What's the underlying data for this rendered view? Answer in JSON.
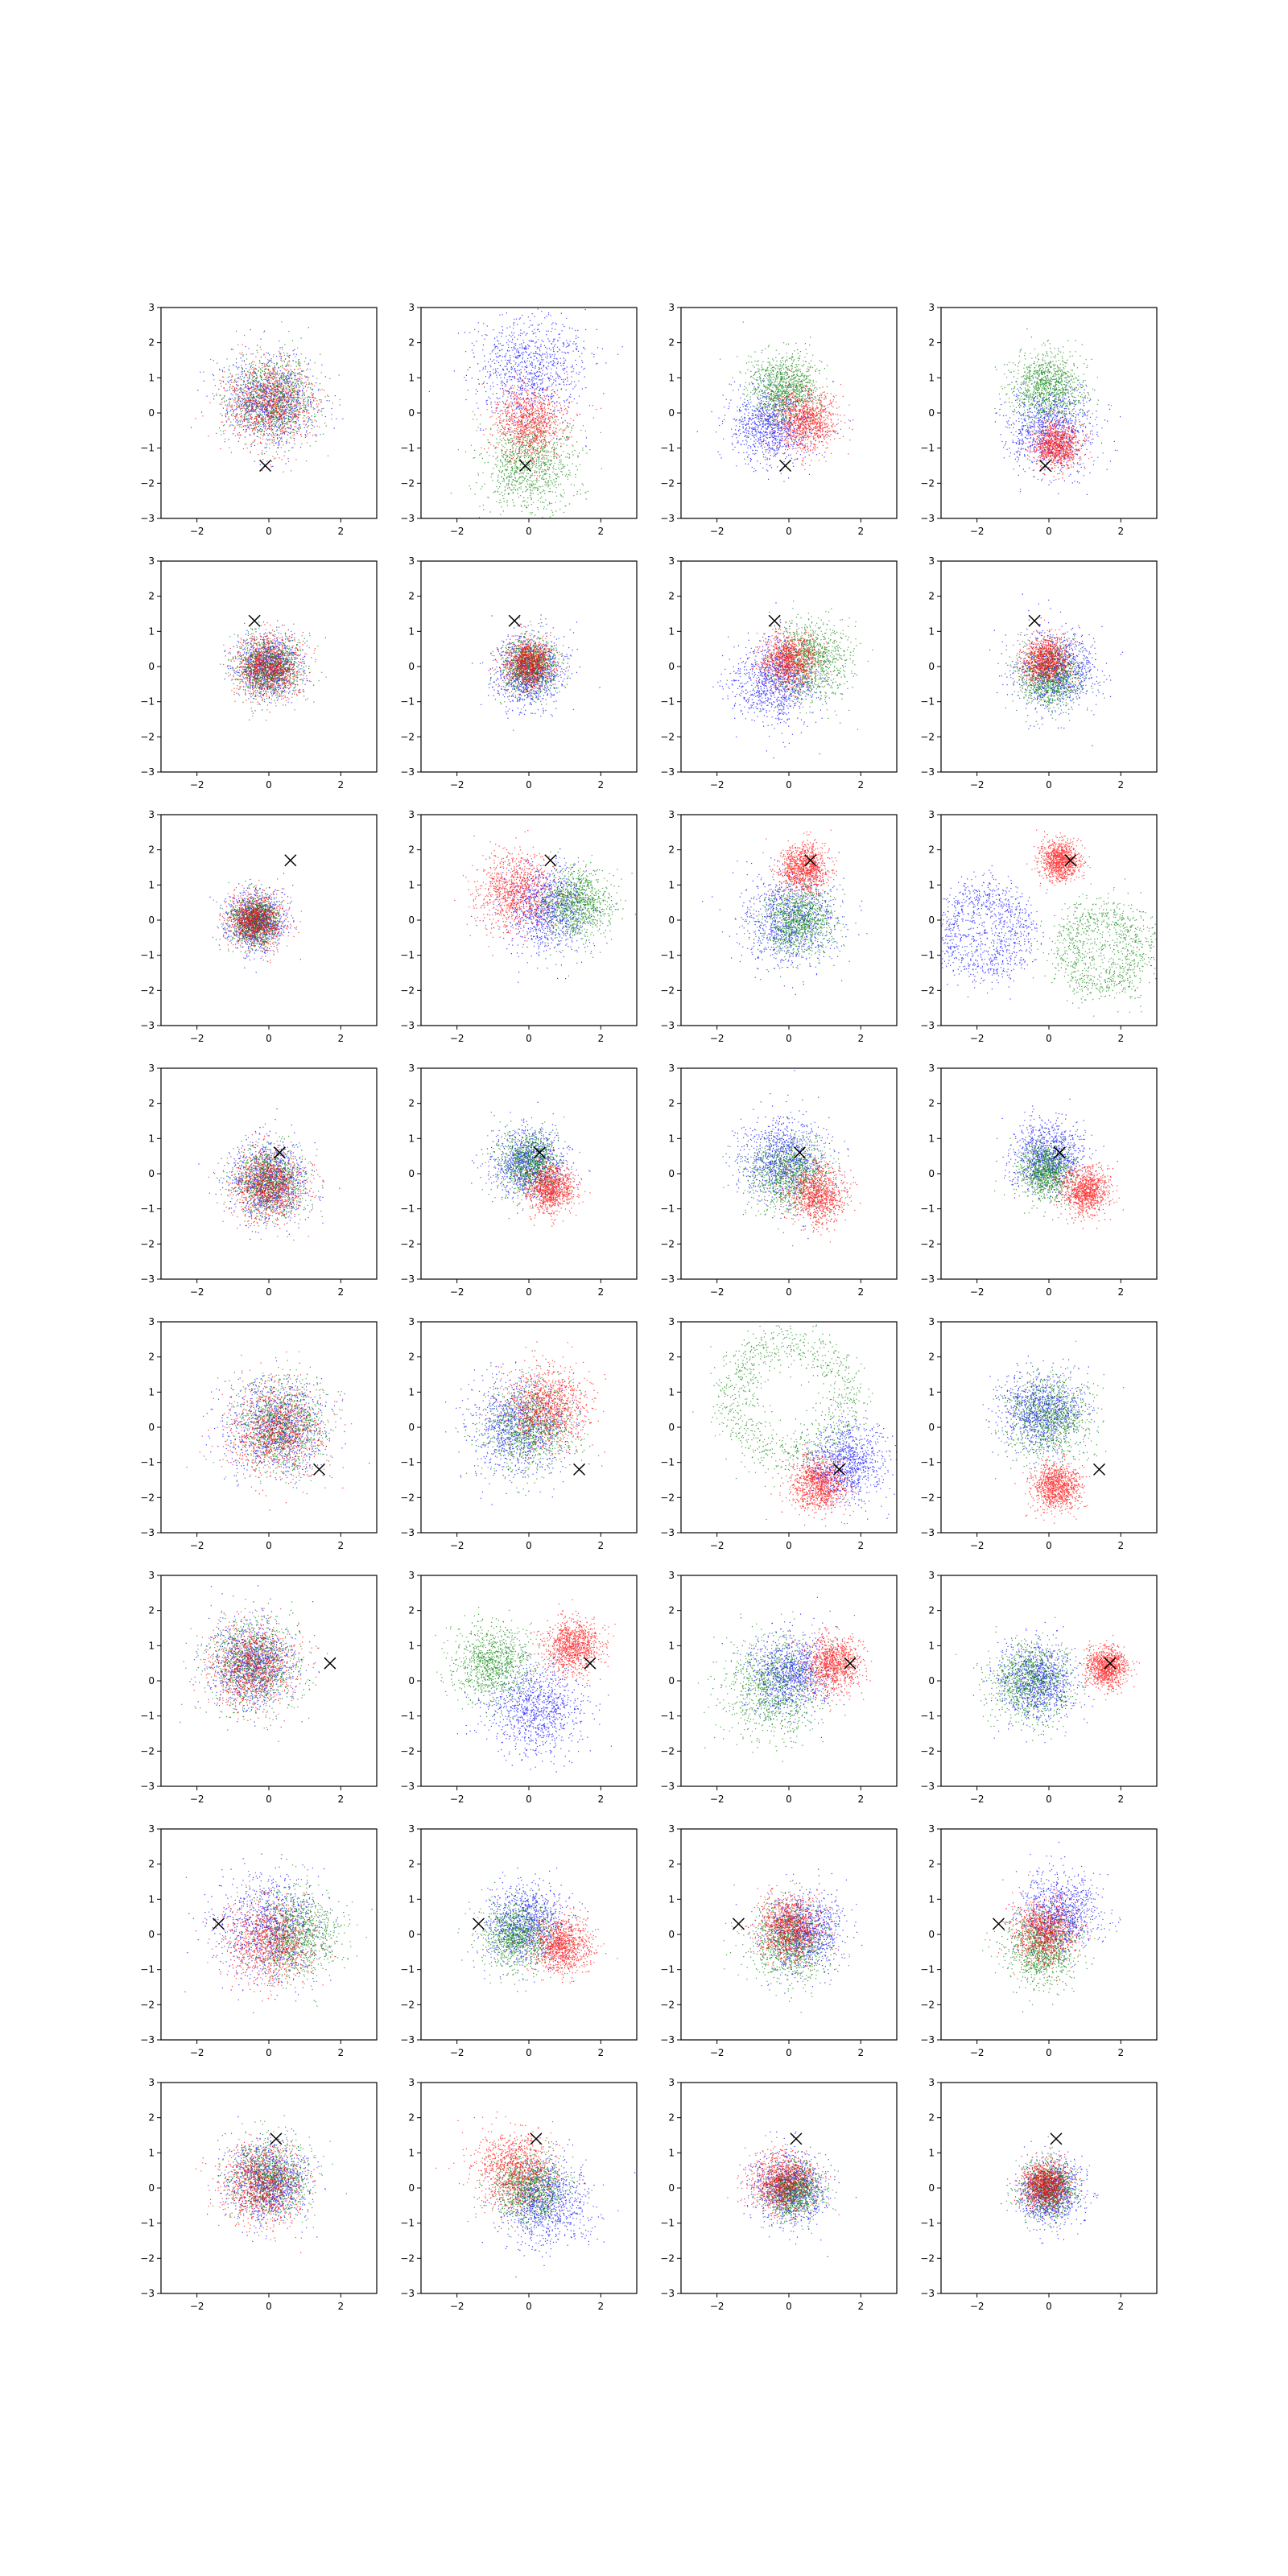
{
  "figure": {
    "rows": 8,
    "cols": 4,
    "colors": {
      "blue": "#0000ff",
      "green": "#008000",
      "red": "#ff0000",
      "marker": "#000000"
    }
  },
  "chart_data": {
    "type": "scatter",
    "xlim": [
      -3,
      3
    ],
    "ylim": [
      -3,
      3
    ],
    "xticks": [
      -2,
      0,
      2
    ],
    "yticks": [
      -3,
      -2,
      -1,
      0,
      1,
      2,
      3
    ],
    "xtick_labels": [
      "−2",
      "0",
      "2"
    ],
    "ytick_labels": [
      "−3",
      "−2",
      "−1",
      "0",
      "1",
      "2",
      "3"
    ],
    "grid": false,
    "marker_symbol": "x",
    "row_markers": [
      [
        -0.1,
        -1.5
      ],
      [
        -0.4,
        1.3
      ],
      [
        0.6,
        1.7
      ],
      [
        0.3,
        0.6
      ],
      [
        1.4,
        -1.2
      ],
      [
        1.7,
        0.5
      ],
      [
        -1.4,
        0.3
      ],
      [
        0.2,
        1.4
      ]
    ],
    "panels": [
      {
        "row": 0,
        "col": 0,
        "clouds": [
          {
            "color": "blue",
            "cx": 0.0,
            "cy": 0.4,
            "r": 1.1
          },
          {
            "color": "green",
            "cx": 0.1,
            "cy": 0.4,
            "r": 1.1
          },
          {
            "color": "red",
            "cx": 0.0,
            "cy": 0.3,
            "r": 1.1
          }
        ]
      },
      {
        "row": 0,
        "col": 1,
        "clouds": [
          {
            "color": "blue",
            "cx": 0.0,
            "cy": 1.3,
            "r": 1.4
          },
          {
            "color": "green",
            "cx": 0.0,
            "cy": -1.5,
            "r": 1.2
          },
          {
            "color": "red",
            "cx": 0.0,
            "cy": -0.3,
            "r": 0.9
          }
        ]
      },
      {
        "row": 0,
        "col": 2,
        "clouds": [
          {
            "color": "blue",
            "cx": -0.5,
            "cy": -0.3,
            "r": 1.0
          },
          {
            "color": "green",
            "cx": -0.1,
            "cy": 0.7,
            "r": 0.9
          },
          {
            "color": "red",
            "cx": 0.5,
            "cy": -0.2,
            "r": 0.8
          }
        ]
      },
      {
        "row": 0,
        "col": 3,
        "clouds": [
          {
            "color": "blue",
            "cx": 0.0,
            "cy": -0.4,
            "r": 1.1
          },
          {
            "color": "green",
            "cx": 0.0,
            "cy": 0.8,
            "r": 0.9
          },
          {
            "color": "red",
            "cx": 0.2,
            "cy": -0.9,
            "r": 0.6
          }
        ]
      },
      {
        "row": 1,
        "col": 0,
        "clouds": [
          {
            "color": "blue",
            "cx": 0.0,
            "cy": 0.0,
            "r": 0.8
          },
          {
            "color": "green",
            "cx": 0.0,
            "cy": 0.0,
            "r": 0.8
          },
          {
            "color": "red",
            "cx": 0.0,
            "cy": 0.0,
            "r": 0.8
          }
        ]
      },
      {
        "row": 1,
        "col": 1,
        "clouds": [
          {
            "color": "blue",
            "cx": 0.0,
            "cy": -0.1,
            "r": 0.9
          },
          {
            "color": "green",
            "cx": 0.0,
            "cy": 0.0,
            "r": 0.7
          },
          {
            "color": "red",
            "cx": 0.0,
            "cy": 0.1,
            "r": 0.6
          }
        ]
      },
      {
        "row": 1,
        "col": 2,
        "clouds": [
          {
            "color": "blue",
            "cx": -0.4,
            "cy": -0.4,
            "r": 1.1
          },
          {
            "color": "green",
            "cx": 0.6,
            "cy": 0.2,
            "r": 1.0
          },
          {
            "color": "red",
            "cx": 0.0,
            "cy": 0.2,
            "r": 0.7
          }
        ]
      },
      {
        "row": 1,
        "col": 3,
        "clouds": [
          {
            "color": "blue",
            "cx": 0.2,
            "cy": -0.1,
            "r": 1.0
          },
          {
            "color": "green",
            "cx": 0.0,
            "cy": -0.3,
            "r": 0.8
          },
          {
            "color": "red",
            "cx": -0.1,
            "cy": 0.2,
            "r": 0.6
          }
        ]
      },
      {
        "row": 2,
        "col": 0,
        "clouds": [
          {
            "color": "blue",
            "cx": -0.4,
            "cy": 0.0,
            "r": 0.7
          },
          {
            "color": "green",
            "cx": -0.4,
            "cy": 0.0,
            "r": 0.6
          },
          {
            "color": "red",
            "cx": -0.4,
            "cy": 0.0,
            "r": 0.7
          }
        ]
      },
      {
        "row": 2,
        "col": 1,
        "clouds": [
          {
            "color": "blue",
            "cx": 0.5,
            "cy": 0.3,
            "r": 1.1
          },
          {
            "color": "green",
            "cx": 1.3,
            "cy": 0.5,
            "r": 0.9
          },
          {
            "color": "red",
            "cx": -0.4,
            "cy": 0.8,
            "r": 1.0
          }
        ]
      },
      {
        "row": 2,
        "col": 2,
        "clouds": [
          {
            "color": "blue",
            "cx": 0.0,
            "cy": 0.0,
            "r": 1.2
          },
          {
            "color": "green",
            "cx": 0.3,
            "cy": 0.0,
            "r": 0.9
          },
          {
            "color": "red",
            "cx": 0.4,
            "cy": 1.5,
            "r": 0.6
          }
        ]
      },
      {
        "row": 2,
        "col": 3,
        "clouds": [
          {
            "color": "blue",
            "cx": -1.8,
            "cy": -0.3,
            "r": 1.0,
            "ring": true
          },
          {
            "color": "green",
            "cx": 1.5,
            "cy": -0.8,
            "r": 1.0,
            "ring": true
          },
          {
            "color": "red",
            "cx": 0.3,
            "cy": 1.7,
            "r": 0.5
          }
        ]
      },
      {
        "row": 3,
        "col": 0,
        "clouds": [
          {
            "color": "blue",
            "cx": 0.0,
            "cy": -0.2,
            "r": 1.0
          },
          {
            "color": "green",
            "cx": 0.0,
            "cy": -0.2,
            "r": 0.9
          },
          {
            "color": "red",
            "cx": 0.0,
            "cy": -0.3,
            "r": 0.9
          }
        ]
      },
      {
        "row": 3,
        "col": 1,
        "clouds": [
          {
            "color": "blue",
            "cx": 0.0,
            "cy": 0.3,
            "r": 0.9
          },
          {
            "color": "green",
            "cx": 0.0,
            "cy": 0.3,
            "r": 0.8
          },
          {
            "color": "red",
            "cx": 0.6,
            "cy": -0.4,
            "r": 0.6
          }
        ]
      },
      {
        "row": 3,
        "col": 2,
        "clouds": [
          {
            "color": "blue",
            "cx": -0.2,
            "cy": 0.4,
            "r": 1.1
          },
          {
            "color": "green",
            "cx": 0.0,
            "cy": 0.0,
            "r": 1.0
          },
          {
            "color": "red",
            "cx": 0.8,
            "cy": -0.6,
            "r": 0.7
          }
        ]
      },
      {
        "row": 3,
        "col": 3,
        "clouds": [
          {
            "color": "blue",
            "cx": 0.0,
            "cy": 0.5,
            "r": 0.9
          },
          {
            "color": "green",
            "cx": -0.1,
            "cy": 0.1,
            "r": 0.7
          },
          {
            "color": "red",
            "cx": 1.0,
            "cy": -0.5,
            "r": 0.6
          }
        ]
      },
      {
        "row": 4,
        "col": 0,
        "clouds": [
          {
            "color": "blue",
            "cx": 0.2,
            "cy": 0.0,
            "r": 1.2
          },
          {
            "color": "green",
            "cx": 0.3,
            "cy": 0.1,
            "r": 1.2
          },
          {
            "color": "red",
            "cx": 0.2,
            "cy": -0.1,
            "r": 1.2
          }
        ]
      },
      {
        "row": 4,
        "col": 1,
        "clouds": [
          {
            "color": "blue",
            "cx": -0.3,
            "cy": 0.0,
            "r": 1.2
          },
          {
            "color": "green",
            "cx": 0.0,
            "cy": 0.0,
            "r": 1.1
          },
          {
            "color": "red",
            "cx": 0.5,
            "cy": 0.6,
            "r": 1.0
          }
        ]
      },
      {
        "row": 4,
        "col": 2,
        "clouds": [
          {
            "color": "blue",
            "cx": 1.6,
            "cy": -1.0,
            "r": 1.0
          },
          {
            "color": "green",
            "cx": 0.0,
            "cy": 0.8,
            "r": 1.6,
            "ring": true
          },
          {
            "color": "red",
            "cx": 0.8,
            "cy": -1.6,
            "r": 0.7
          }
        ]
      },
      {
        "row": 4,
        "col": 3,
        "clouds": [
          {
            "color": "blue",
            "cx": -0.2,
            "cy": 0.5,
            "r": 1.0
          },
          {
            "color": "green",
            "cx": 0.0,
            "cy": 0.3,
            "r": 1.1
          },
          {
            "color": "red",
            "cx": 0.2,
            "cy": -1.7,
            "r": 0.6
          }
        ]
      },
      {
        "row": 5,
        "col": 0,
        "clouds": [
          {
            "color": "blue",
            "cx": -0.5,
            "cy": 0.5,
            "r": 1.1
          },
          {
            "color": "green",
            "cx": -0.4,
            "cy": 0.5,
            "r": 1.1
          },
          {
            "color": "red",
            "cx": -0.5,
            "cy": 0.4,
            "r": 1.1
          }
        ]
      },
      {
        "row": 5,
        "col": 1,
        "clouds": [
          {
            "color": "blue",
            "cx": 0.2,
            "cy": -0.8,
            "r": 1.2
          },
          {
            "color": "green",
            "cx": -1.0,
            "cy": 0.5,
            "r": 1.0
          },
          {
            "color": "red",
            "cx": 1.2,
            "cy": 1.0,
            "r": 0.7
          }
        ]
      },
      {
        "row": 5,
        "col": 2,
        "clouds": [
          {
            "color": "blue",
            "cx": 0.0,
            "cy": 0.2,
            "r": 1.0
          },
          {
            "color": "green",
            "cx": -0.4,
            "cy": -0.2,
            "r": 1.3
          },
          {
            "color": "red",
            "cx": 1.2,
            "cy": 0.5,
            "r": 0.7
          }
        ]
      },
      {
        "row": 5,
        "col": 3,
        "clouds": [
          {
            "color": "blue",
            "cx": -0.3,
            "cy": 0.0,
            "r": 1.0
          },
          {
            "color": "green",
            "cx": -0.5,
            "cy": 0.0,
            "r": 1.0
          },
          {
            "color": "red",
            "cx": 1.6,
            "cy": 0.4,
            "r": 0.5
          }
        ]
      },
      {
        "row": 6,
        "col": 0,
        "clouds": [
          {
            "color": "blue",
            "cx": 0.0,
            "cy": 0.2,
            "r": 1.3
          },
          {
            "color": "green",
            "cx": 0.7,
            "cy": 0.0,
            "r": 1.1
          },
          {
            "color": "red",
            "cx": 0.0,
            "cy": -0.2,
            "r": 1.1
          }
        ]
      },
      {
        "row": 6,
        "col": 1,
        "clouds": [
          {
            "color": "blue",
            "cx": -0.1,
            "cy": 0.3,
            "r": 1.0
          },
          {
            "color": "green",
            "cx": -0.3,
            "cy": 0.0,
            "r": 0.9
          },
          {
            "color": "red",
            "cx": 0.9,
            "cy": -0.3,
            "r": 0.7
          }
        ]
      },
      {
        "row": 6,
        "col": 2,
        "clouds": [
          {
            "color": "blue",
            "cx": 0.4,
            "cy": 0.1,
            "r": 1.0
          },
          {
            "color": "green",
            "cx": 0.0,
            "cy": -0.2,
            "r": 1.0
          },
          {
            "color": "red",
            "cx": 0.0,
            "cy": 0.2,
            "r": 0.8
          }
        ]
      },
      {
        "row": 6,
        "col": 3,
        "clouds": [
          {
            "color": "blue",
            "cx": 0.3,
            "cy": 0.6,
            "r": 1.0
          },
          {
            "color": "green",
            "cx": -0.2,
            "cy": -0.4,
            "r": 0.9
          },
          {
            "color": "red",
            "cx": -0.1,
            "cy": 0.1,
            "r": 0.8
          }
        ]
      },
      {
        "row": 7,
        "col": 0,
        "clouds": [
          {
            "color": "blue",
            "cx": 0.0,
            "cy": 0.2,
            "r": 1.0
          },
          {
            "color": "green",
            "cx": 0.0,
            "cy": 0.3,
            "r": 1.0
          },
          {
            "color": "red",
            "cx": -0.2,
            "cy": 0.1,
            "r": 1.0
          }
        ]
      },
      {
        "row": 7,
        "col": 1,
        "clouds": [
          {
            "color": "blue",
            "cx": 0.4,
            "cy": -0.4,
            "r": 1.1
          },
          {
            "color": "green",
            "cx": 0.0,
            "cy": 0.0,
            "r": 0.9
          },
          {
            "color": "red",
            "cx": -0.4,
            "cy": 0.5,
            "r": 1.0
          }
        ]
      },
      {
        "row": 7,
        "col": 2,
        "clouds": [
          {
            "color": "blue",
            "cx": 0.0,
            "cy": 0.0,
            "r": 0.9
          },
          {
            "color": "green",
            "cx": 0.1,
            "cy": -0.1,
            "r": 0.7
          },
          {
            "color": "red",
            "cx": -0.2,
            "cy": 0.2,
            "r": 0.8
          }
        ]
      },
      {
        "row": 7,
        "col": 3,
        "clouds": [
          {
            "color": "blue",
            "cx": 0.0,
            "cy": -0.1,
            "r": 0.8
          },
          {
            "color": "green",
            "cx": 0.0,
            "cy": 0.0,
            "r": 0.7
          },
          {
            "color": "red",
            "cx": -0.1,
            "cy": 0.1,
            "r": 0.6
          }
        ]
      }
    ]
  }
}
